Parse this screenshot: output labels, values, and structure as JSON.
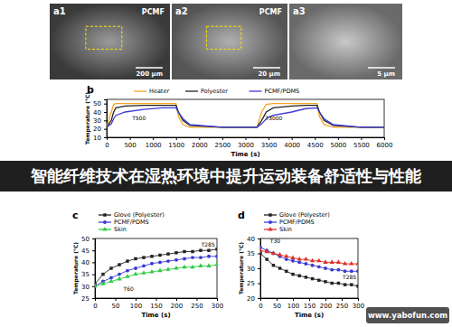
{
  "chart_data": [
    {
      "type": "line",
      "title": "b",
      "x_label": "Time (s)",
      "y_label": "Temperature (°C)",
      "x": [
        0,
        100,
        150,
        200,
        400,
        800,
        1200,
        1500,
        1550,
        1650,
        1800,
        2500,
        3000,
        3250,
        3350,
        3450,
        3600,
        4000,
        4300,
        4550,
        4600,
        4700,
        4900,
        5500,
        6000
      ],
      "series": [
        {
          "name": "Heater",
          "color": "#f5a623",
          "values": [
            22,
            40,
            49,
            50,
            50,
            50,
            50,
            50,
            35,
            25,
            22,
            22,
            22,
            22,
            40,
            49,
            50,
            50,
            50,
            50,
            35,
            25,
            22,
            22,
            22
          ]
        },
        {
          "name": "Polyester",
          "color": "#222222",
          "values": [
            22,
            30,
            40,
            45,
            47,
            48,
            48,
            48,
            40,
            30,
            24,
            22,
            22,
            22,
            30,
            40,
            45,
            47,
            48,
            48,
            40,
            30,
            24,
            22,
            22
          ]
        },
        {
          "name": "PCMF/PDMS",
          "color": "#3b3bd6",
          "values": [
            22,
            26,
            32,
            36,
            40,
            43,
            45,
            45,
            40,
            32,
            25,
            22,
            22,
            22,
            26,
            32,
            36,
            40,
            44,
            45,
            40,
            32,
            25,
            22,
            22
          ]
        }
      ],
      "xlim": [
        0,
        6000
      ],
      "xticks": [
        0,
        500,
        1000,
        1500,
        2000,
        2500,
        3000,
        3500,
        4000,
        4500,
        5000,
        5500,
        6000
      ],
      "ylim": [
        10,
        55
      ],
      "yticks": [
        10,
        20,
        30,
        40,
        50
      ],
      "annotations": [
        {
          "x": 550,
          "y": 30,
          "text": "T500"
        },
        {
          "x": 3800,
          "y": 30,
          "text": "T3000"
        }
      ],
      "legend": "top",
      "grid": false
    },
    {
      "type": "line",
      "title": "c",
      "x_label": "Time (s)",
      "y_label": "Temperature (°C)",
      "x": [
        0,
        20,
        40,
        60,
        80,
        100,
        120,
        140,
        160,
        180,
        200,
        220,
        240,
        260,
        280,
        300
      ],
      "series": [
        {
          "name": "Glove (Polyester)",
          "color": "#222222",
          "marker": "square",
          "values": [
            31,
            35,
            37.5,
            39,
            40.5,
            41.5,
            42,
            42.5,
            43,
            43.5,
            44,
            44.5,
            44.5,
            45,
            45,
            45.5
          ]
        },
        {
          "name": "PCMF/PDMS",
          "color": "#3b3bd6",
          "marker": "circle",
          "values": [
            30,
            32,
            33.5,
            35,
            36.5,
            37.5,
            38.5,
            39.5,
            40,
            40.5,
            41,
            41.5,
            42,
            42,
            42.5,
            42.5
          ]
        },
        {
          "name": "Skin",
          "color": "#2ecc40",
          "marker": "triangle",
          "values": [
            30,
            31,
            32,
            33,
            34,
            35,
            35.5,
            36,
            36.5,
            37,
            37.5,
            38,
            38,
            38.5,
            38.5,
            39
          ]
        }
      ],
      "xlim": [
        0,
        300
      ],
      "xticks": [
        0,
        50,
        100,
        150,
        200,
        250,
        300
      ],
      "ylim": [
        25,
        50
      ],
      "yticks": [
        25,
        30,
        35,
        40,
        45,
        50
      ],
      "annotations": [
        {
          "x": 70,
          "y": 28,
          "text": "T60"
        },
        {
          "x": 295,
          "y": 46.5,
          "text": "T285"
        }
      ],
      "legend": "top",
      "grid": false
    },
    {
      "type": "line",
      "title": "d",
      "x_label": "Time (s)",
      "y_label": "Temperature (°C)",
      "x": [
        0,
        20,
        40,
        60,
        80,
        100,
        120,
        140,
        160,
        180,
        200,
        220,
        240,
        260,
        280,
        300
      ],
      "series": [
        {
          "name": "Glove (Polyester)",
          "color": "#222222",
          "marker": "square",
          "values": [
            35,
            33,
            31,
            30,
            29,
            28,
            27.5,
            27,
            26.5,
            26,
            25.5,
            25,
            25,
            24.5,
            24.5,
            24
          ]
        },
        {
          "name": "PCMF/PDMS",
          "color": "#3b3bd6",
          "marker": "circle",
          "values": [
            37,
            36,
            35,
            34,
            33,
            32.5,
            32,
            31.5,
            31,
            30.5,
            30,
            29.5,
            29.5,
            29,
            29,
            29
          ]
        },
        {
          "name": "Skin",
          "color": "#e0302a",
          "marker": "triangle",
          "values": [
            36,
            35.5,
            35,
            34.5,
            34,
            33.5,
            33,
            33,
            32.5,
            32.5,
            32,
            32,
            32,
            31.5,
            31.5,
            31.5
          ]
        }
      ],
      "xlim": [
        0,
        300
      ],
      "xticks": [
        0,
        50,
        100,
        150,
        200,
        250,
        300
      ],
      "ylim": [
        20,
        40
      ],
      "yticks": [
        20,
        25,
        30,
        35,
        40
      ],
      "annotations": [
        {
          "x": 30,
          "y": 38.5,
          "text": "T30"
        },
        {
          "x": 295,
          "y": 26.5,
          "text": "T285"
        }
      ],
      "legend": "top",
      "grid": false
    }
  ],
  "images": [
    {
      "label": "a1",
      "caption": "PCMF",
      "scale_bar": "200 μm"
    },
    {
      "label": "a2",
      "caption": "PCMF",
      "scale_bar": "20 μm"
    },
    {
      "label": "a3",
      "scale_bar": "5 μm"
    }
  ],
  "banner": "智能纤维技术在湿热环境中提升运动装备舒适性与性能",
  "watermark": "www.yabofun.com"
}
